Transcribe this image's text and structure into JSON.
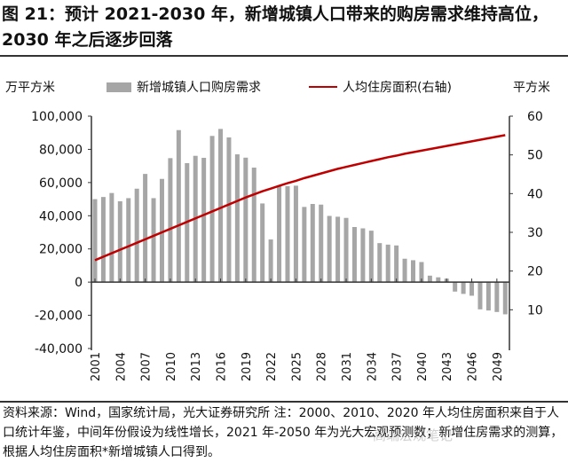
{
  "title": "图 21：预计 2021-2030 年，新增城镇人口带来的购房需求维持高位，2030 年之后逐步回落",
  "footer": "资料来源：Wind，国家统计局，光大证券研究所 注：2000、2010、2020 年人均住房面积来自于人口统计年鉴，中间年份假设为线性增长，2021 年-2050 年为光大宏观预测数；新增住房需求的测算，根据人均住房面积*新增城镇人口得到。",
  "watermark": "高端宏观笔记",
  "chart_data": {
    "type": "bar+line",
    "left_unit": "万平方米",
    "right_unit": "平方米",
    "ylim_left": [
      -40000,
      100000
    ],
    "yticks_left": [
      "-40,000",
      "-20,000",
      "0",
      "20,000",
      "40,000",
      "60,000",
      "80,000",
      "100,000"
    ],
    "ylim_right": [
      0,
      60
    ],
    "yticks_right": [
      "10",
      "20",
      "30",
      "40",
      "50",
      "60"
    ],
    "xtick_labels": [
      "2001",
      "2004",
      "2007",
      "2010",
      "2013",
      "2016",
      "2019",
      "2022",
      "2025",
      "2028",
      "2031",
      "2034",
      "2037",
      "2040",
      "2043",
      "2046",
      "2049"
    ],
    "grid": false,
    "legend": "top",
    "colors": {
      "bar": "#a6a6a6",
      "line": "#c00000"
    },
    "x": [
      2001,
      2002,
      2003,
      2004,
      2005,
      2006,
      2007,
      2008,
      2009,
      2010,
      2011,
      2012,
      2013,
      2014,
      2015,
      2016,
      2017,
      2018,
      2019,
      2020,
      2021,
      2022,
      2023,
      2024,
      2025,
      2026,
      2027,
      2028,
      2029,
      2030,
      2031,
      2032,
      2033,
      2034,
      2035,
      2036,
      2037,
      2038,
      2039,
      2040,
      2041,
      2042,
      2043,
      2044,
      2045,
      2046,
      2047,
      2048,
      2049,
      2050
    ],
    "series": [
      {
        "name": "新增城镇人口购房需求",
        "axis": "left",
        "type": "bar",
        "values": [
          50000,
          51300,
          53700,
          48700,
          50600,
          56300,
          65200,
          50600,
          62200,
          74700,
          91600,
          71700,
          76100,
          74900,
          88100,
          92300,
          87200,
          77000,
          75000,
          69000,
          47400,
          25700,
          58100,
          57800,
          58100,
          45300,
          47100,
          46700,
          39900,
          39400,
          38700,
          33200,
          32400,
          31000,
          23500,
          22600,
          22100,
          14100,
          13200,
          12100,
          3900,
          2900,
          2100,
          -5700,
          -7100,
          -8200,
          -16400,
          -17100,
          -18000,
          -19400
        ]
      },
      {
        "name": "人均住房面积(右轴)",
        "axis": "right",
        "type": "line",
        "values": [
          22.8,
          23.7,
          24.6,
          25.5,
          26.4,
          27.3,
          28.2,
          29.1,
          30.0,
          30.9,
          31.8,
          32.7,
          33.6,
          34.5,
          35.4,
          36.3,
          37.2,
          38.1,
          39.0,
          39.8,
          40.6,
          41.3,
          42.0,
          42.7,
          43.3,
          44.0,
          44.6,
          45.2,
          45.8,
          46.4,
          46.9,
          47.4,
          47.9,
          48.4,
          48.9,
          49.4,
          49.8,
          50.3,
          50.7,
          51.1,
          51.5,
          51.9,
          52.3,
          52.7,
          53.1,
          53.5,
          53.9,
          54.3,
          54.7,
          55.1
        ]
      }
    ]
  }
}
